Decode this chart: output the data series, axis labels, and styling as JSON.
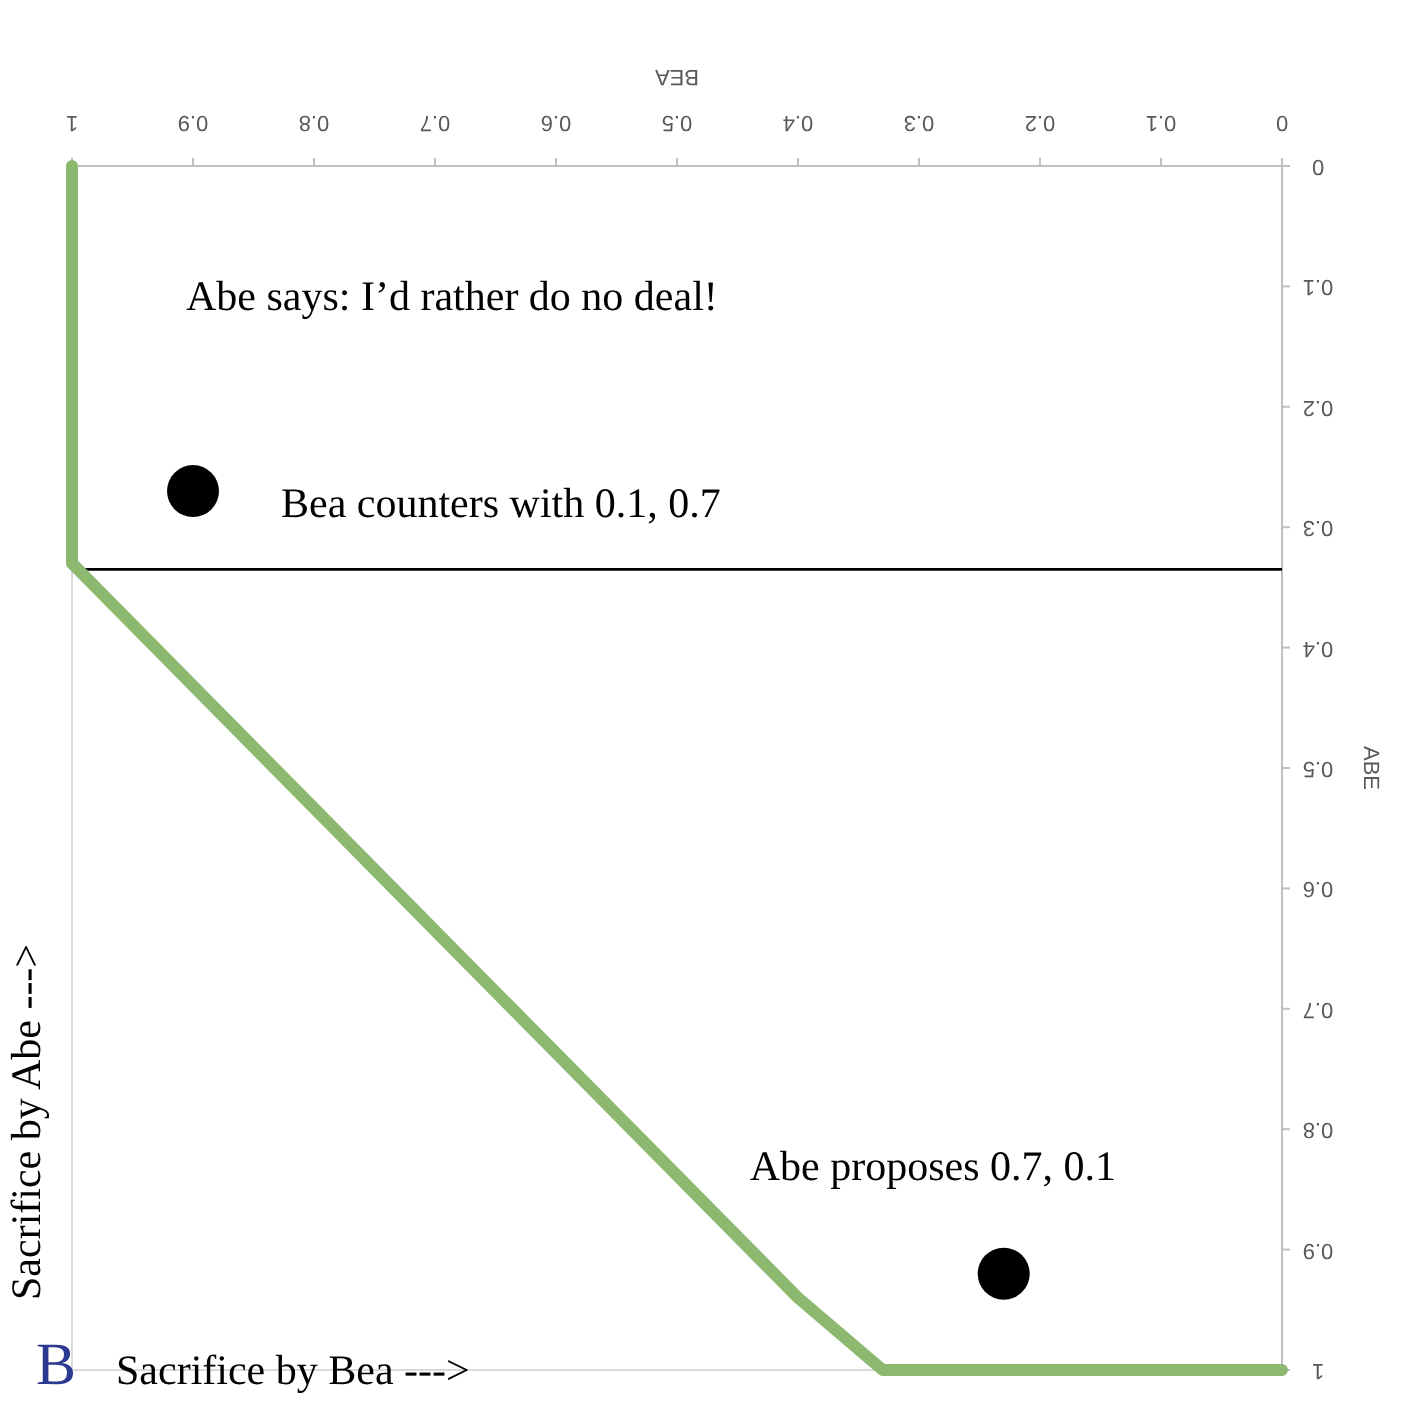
{
  "chart_data": {
    "type": "line",
    "xlabel": "BEA",
    "ylabel": "ABE",
    "xlim": [
      1,
      0
    ],
    "ylim": [
      1,
      0
    ],
    "xticks": [
      0,
      0.1,
      0.2,
      0.3,
      0.4,
      0.5,
      0.6,
      0.7,
      0.8,
      0.9,
      1
    ],
    "yticks": [
      0,
      0.1,
      0.2,
      0.3,
      0.4,
      0.5,
      0.6,
      0.7,
      0.8,
      0.9,
      1
    ],
    "grid": false,
    "series": [
      {
        "color": "#8db870",
        "x": [
          1,
          1,
          0.4,
          0.33,
          0
        ],
        "values": [
          0,
          0.33,
          0.94,
          1,
          1
        ],
        "marker": "none"
      },
      {
        "type": "scatter",
        "color": "#000000",
        "x": [
          0.9,
          0.23
        ],
        "values": [
          0.27,
          0.92
        ],
        "marker": "circle"
      }
    ],
    "ref_lines": [
      {
        "axis": "y",
        "value": 0.335,
        "color": "#000000",
        "line_style": "solid"
      }
    ],
    "annotations": [
      "Abe says: I’d rather do no deal!",
      {
        "text": "Bea counters with 0.1, 0.7",
        "x": 0.9,
        "y": 0.27
      },
      {
        "text": "Abe proposes 0.7, 0.1",
        "x": 0.23,
        "y": 0.92
      },
      "Sacrifice by Abe --->",
      "B",
      "Sacrifice by Bea --->"
    ]
  }
}
